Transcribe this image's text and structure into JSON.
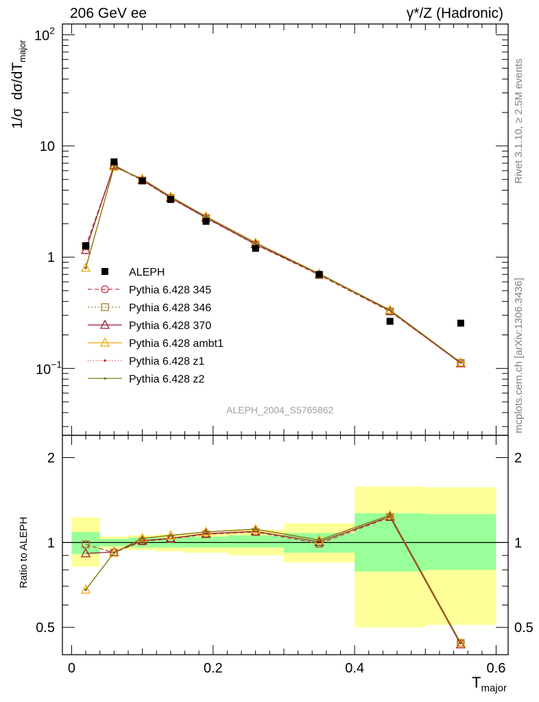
{
  "header": {
    "left": "206 GeV ee",
    "right": "γ*/Z (Hadronic)"
  },
  "side_labels": {
    "rivet": "Rivet 3.1.10, ≥ 2.5M events",
    "mcplots": "mcplots.cern.ch [arXiv:1306.3436]"
  },
  "analysis_id": "ALEPH_2004_S5765862",
  "colors": {
    "band_inner": "#99ff99",
    "band_outer": "#ffff99",
    "data": "#000000",
    "p345": "#c0304a",
    "p346": "#a87b2c",
    "p370": "#9b1a2e",
    "ambt1": "#f2a800",
    "z1": "#e02020",
    "z2": "#7a7a14"
  },
  "chart_data": [
    {
      "type": "scatter",
      "panel": "main",
      "ylabel": "1/σ dσ/dT_major",
      "yscale": "log",
      "ylim": [
        0.025,
        125
      ],
      "xlim": [
        -0.013,
        0.617
      ],
      "y_ticks": [
        "10^-1",
        "1",
        "10",
        "10^2"
      ],
      "legend": "center-left",
      "x": [
        0.02,
        0.06,
        0.1,
        0.14,
        0.19,
        0.26,
        0.35,
        0.45,
        0.55
      ],
      "bin_edges": [
        0.0,
        0.04,
        0.08,
        0.12,
        0.16,
        0.22,
        0.3,
        0.4,
        0.5,
        0.6
      ],
      "data": {
        "name": "ALEPH",
        "values": [
          1.27,
          7.2,
          4.85,
          3.3,
          2.1,
          1.2,
          0.7,
          0.265,
          0.255
        ]
      },
      "series": [
        {
          "name": "Pythia 6.428 345",
          "color": "#c0304a",
          "marker": "circle",
          "dash": "6,4",
          "values": [
            1.25,
            6.6,
            4.9,
            3.4,
            2.25,
            1.3,
            0.69,
            0.325,
            0.112
          ]
        },
        {
          "name": "Pythia 6.428 346",
          "color": "#a87b2c",
          "marker": "square",
          "dash": "2,3",
          "values": [
            1.25,
            6.6,
            4.9,
            3.4,
            2.25,
            1.3,
            0.69,
            0.325,
            0.112
          ]
        },
        {
          "name": "Pythia 6.428 370",
          "color": "#9b1a2e",
          "marker": "triangle",
          "dash": "",
          "values": [
            1.16,
            6.7,
            4.95,
            3.43,
            2.27,
            1.31,
            0.705,
            0.33,
            0.111
          ]
        },
        {
          "name": "Pythia 6.428 ambt1",
          "color": "#f2a800",
          "marker": "triangle",
          "dash": "",
          "values": [
            0.8,
            6.5,
            5.05,
            3.5,
            2.32,
            1.35,
            0.71,
            0.335,
            0.113
          ]
        },
        {
          "name": "Pythia 6.428 z1",
          "color": "#e02020",
          "marker": "dot",
          "dash": "1,3",
          "values": [
            0.8,
            6.5,
            5.05,
            3.5,
            2.32,
            1.35,
            0.71,
            0.335,
            0.113
          ]
        },
        {
          "name": "Pythia 6.428 z2",
          "color": "#7a7a14",
          "marker": "dot",
          "dash": "",
          "values": [
            0.8,
            6.5,
            5.05,
            3.5,
            2.32,
            1.35,
            0.71,
            0.335,
            0.113
          ]
        }
      ]
    },
    {
      "type": "line",
      "panel": "ratio",
      "ylabel": "Ratio to ALEPH",
      "xlabel": "T_major",
      "yscale": "log",
      "ylim": [
        0.4,
        2.4
      ],
      "xlim": [
        -0.013,
        0.617
      ],
      "x_ticks": [
        "0",
        "0.2",
        "0.4",
        "0.6"
      ],
      "y_ticks": [
        "0.5",
        "1",
        "2"
      ],
      "bands": {
        "bin_edges": [
          0.0,
          0.04,
          0.08,
          0.12,
          0.16,
          0.22,
          0.3,
          0.4,
          0.5,
          0.6
        ],
        "inner_lo": [
          0.91,
          0.97,
          0.96,
          0.96,
          0.96,
          0.96,
          0.92,
          0.79,
          0.8
        ],
        "inner_hi": [
          1.09,
          1.03,
          1.04,
          1.04,
          1.05,
          1.06,
          1.08,
          1.27,
          1.26
        ],
        "outer_lo": [
          0.82,
          0.95,
          0.94,
          0.93,
          0.92,
          0.9,
          0.85,
          0.5,
          0.51
        ],
        "outer_hi": [
          1.23,
          1.05,
          1.06,
          1.07,
          1.08,
          1.11,
          1.17,
          1.58,
          1.57
        ]
      },
      "x": [
        0.02,
        0.06,
        0.1,
        0.14,
        0.19,
        0.26,
        0.35,
        0.45,
        0.55
      ],
      "series": [
        {
          "name": "Pythia 6.428 345",
          "values": [
            0.985,
            0.92,
            1.01,
            1.03,
            1.07,
            1.09,
            0.99,
            1.23,
            0.44
          ]
        },
        {
          "name": "Pythia 6.428 346",
          "values": [
            0.985,
            0.92,
            1.01,
            1.03,
            1.07,
            1.09,
            0.99,
            1.23,
            0.44
          ]
        },
        {
          "name": "Pythia 6.428 370",
          "values": [
            0.915,
            0.925,
            1.015,
            1.035,
            1.075,
            1.095,
            1.005,
            1.235,
            0.435
          ]
        },
        {
          "name": "Pythia 6.428 ambt1",
          "values": [
            0.68,
            0.92,
            1.035,
            1.06,
            1.09,
            1.115,
            1.02,
            1.25,
            0.44
          ]
        },
        {
          "name": "Pythia 6.428 z1",
          "values": [
            0.68,
            0.92,
            1.035,
            1.06,
            1.09,
            1.115,
            1.02,
            1.25,
            0.44
          ]
        },
        {
          "name": "Pythia 6.428 z2",
          "values": [
            0.68,
            0.92,
            1.035,
            1.06,
            1.09,
            1.115,
            1.02,
            1.25,
            0.44
          ]
        }
      ]
    }
  ]
}
